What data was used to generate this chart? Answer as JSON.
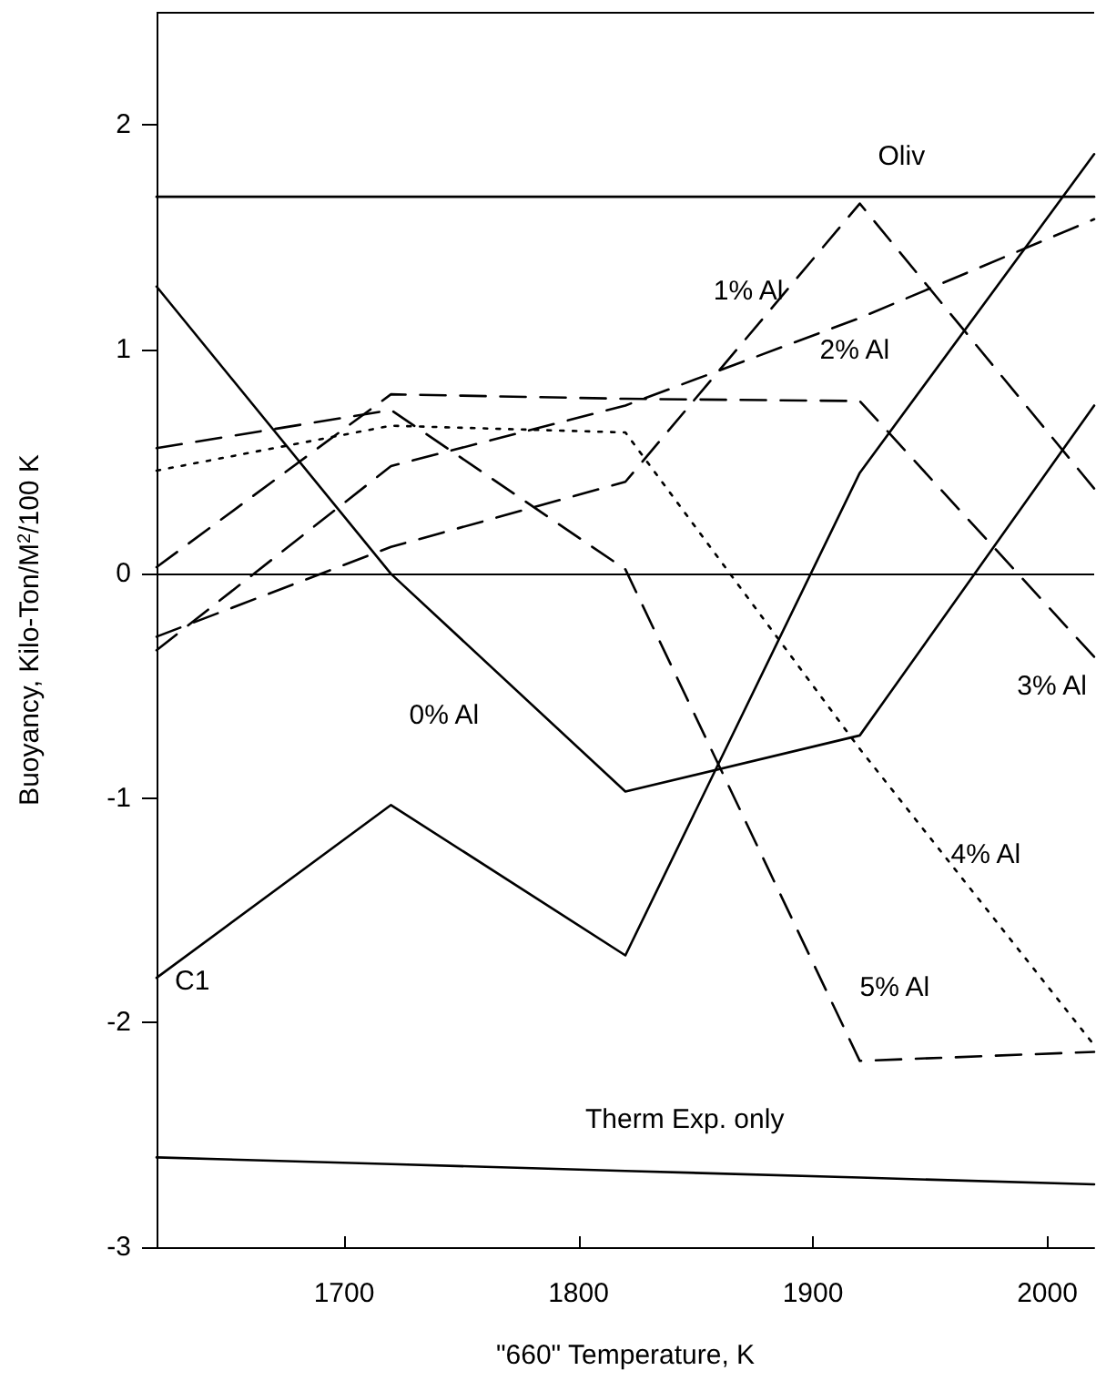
{
  "chart_data": {
    "type": "line",
    "xlabel": "\"660\" Temperature, K",
    "ylabel": "Buoyancy, Kilo-Ton/M$^{2}$/100 K",
    "x": [
      1620,
      1720,
      1820,
      1920,
      2020
    ],
    "xlim": [
      1620,
      2020
    ],
    "xticks": [
      1700,
      1800,
      1900,
      2000
    ],
    "ylim": [
      -3,
      2.5
    ],
    "yticks": [
      -3,
      -2,
      -1,
      0,
      1,
      2
    ],
    "grid": false,
    "legend": false,
    "marker": "none",
    "ref_lines": [
      {
        "axis": "y",
        "value": 0,
        "color": "#000000",
        "line_style": "solid"
      }
    ],
    "series": [
      {
        "name": "Oliv",
        "color": "#000000",
        "line_style": "solid",
        "values": [
          1.68,
          1.68,
          1.68,
          1.68,
          1.68
        ]
      },
      {
        "name": "1% Al",
        "color": "#000000",
        "line_style": "dashed",
        "values": [
          -0.28,
          0.12,
          0.41,
          1.65,
          0.38
        ]
      },
      {
        "name": "2% Al",
        "color": "#000000",
        "line_style": "dashed",
        "values": [
          -0.34,
          0.48,
          0.75,
          1.14,
          1.58
        ]
      },
      {
        "name": "0% Al",
        "color": "#000000",
        "line_style": "solid",
        "values": [
          1.28,
          0.0,
          -0.97,
          -0.72,
          0.75
        ]
      },
      {
        "name": "3% Al",
        "color": "#000000",
        "line_style": "dashed",
        "values": [
          0.03,
          0.8,
          0.78,
          0.77,
          -0.37
        ]
      },
      {
        "name": "4% Al",
        "color": "#000000",
        "line_style": "dotted",
        "values": [
          0.46,
          0.66,
          0.63,
          -0.78,
          -2.1
        ]
      },
      {
        "name": "5% Al",
        "color": "#000000",
        "line_style": "dashed",
        "values": [
          0.56,
          0.73,
          0.02,
          -2.17,
          -2.13
        ]
      },
      {
        "name": "C1",
        "color": "#000000",
        "line_style": "solid",
        "values": [
          -1.8,
          -1.03,
          -1.7,
          0.45,
          1.87
        ]
      },
      {
        "name": "Therm Exp. only",
        "color": "#000000",
        "line_style": "solid",
        "values": [
          -2.6,
          -2.63,
          -2.66,
          -2.69,
          -2.72
        ]
      }
    ]
  }
}
